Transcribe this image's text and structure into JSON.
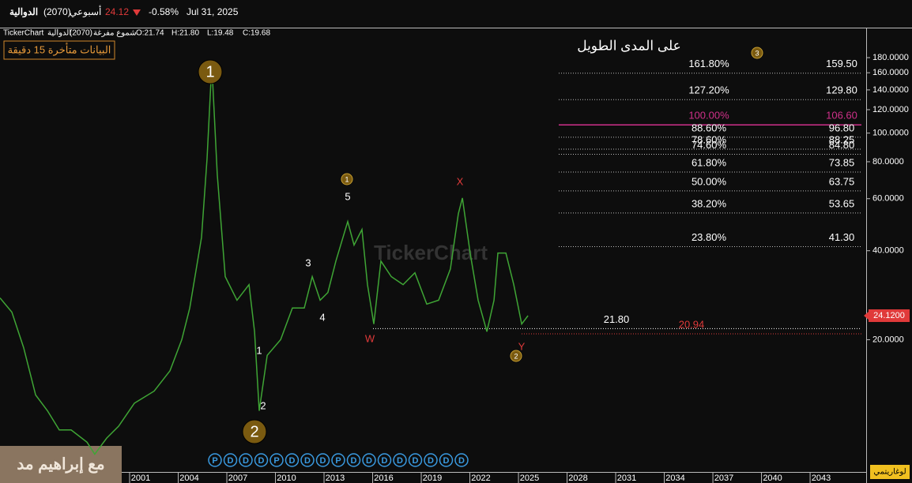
{
  "header": {
    "name": "الدوالية",
    "code": "(2070)",
    "period": "أسبوعي",
    "price": "24.12",
    "change": "-0.58%",
    "date": "Jul 31, 2025"
  },
  "info": {
    "source": "TickerChart",
    "name": "الدوالية",
    "code": "(2070)",
    "style": "شموع مفرغة",
    "ohlc": [
      "O:21.74",
      "H:21.80",
      "L:19.48",
      "C:19.68"
    ]
  },
  "notice": "البيانات متأخرة 15 دقيقة",
  "watermark": "TickerChart",
  "author": "مع إبراهيم مد",
  "scale_mode": "لوغاريتمي",
  "chart_data": {
    "type": "line",
    "title": "على المدى الطويل",
    "title_badge": "3",
    "color": "#3fa535",
    "log_scale": true,
    "x": [
      1993.0,
      1993.73,
      1994.46,
      1995.2,
      1995.93,
      1996.66,
      1997.39,
      1998.37,
      1998.85,
      1999.59,
      2000.32,
      2001.29,
      2002.51,
      2003.49,
      2004.22,
      2004.71,
      2005.44,
      2005.78,
      2006.07,
      2006.41,
      2006.9,
      2007.63,
      2008.37,
      2008.71,
      2009.0,
      2009.49,
      2010.32,
      2011.05,
      2011.78,
      2012.27,
      2012.76,
      2013.24,
      2013.73,
      2014.46,
      2014.85,
      2015.34,
      2015.68,
      2016.07,
      2016.51,
      2017.15,
      2017.88,
      2018.61,
      2019.34,
      2020.07,
      2020.8,
      2021.29,
      2021.54,
      2022.02,
      2022.51,
      2023.05,
      2023.49,
      2023.73,
      2024.22,
      2024.71,
      2025.2,
      2025.59
    ],
    "values": [
      27.7,
      24.8,
      18.8,
      13.0,
      11.5,
      9.9,
      9.9,
      9.0,
      8.2,
      9.3,
      10.2,
      12.2,
      13.4,
      15.7,
      20,
      25.6,
      44.4,
      82,
      171,
      72.5,
      32.7,
      27.2,
      30.7,
      21.3,
      11.5,
      17.7,
      20,
      25.6,
      25.6,
      32.7,
      27.2,
      28.9,
      36.9,
      50.2,
      41.8,
      47.2,
      30.7,
      22.6,
      36.9,
      32.7,
      30.7,
      33.7,
      26.4,
      27.2,
      34.7,
      53.4,
      60.3,
      39.3,
      27.2,
      21.3,
      27.2,
      39.3,
      39.3,
      30.7,
      22.6,
      24.12
    ],
    "xlim": [
      1993.0,
      2046.46
    ],
    "ylim": [
      7.14,
      226
    ],
    "xticks": [
      2001,
      2004,
      2007,
      2010,
      2013,
      2016,
      2019,
      2022,
      2025,
      2028,
      2031,
      2034,
      2037,
      2040,
      2043
    ],
    "yticks": [
      {
        "value": 20,
        "label": "20.0000"
      },
      {
        "value": 40,
        "label": "40.0000"
      },
      {
        "value": 60,
        "label": "60.0000"
      },
      {
        "value": 80,
        "label": "80.0000"
      },
      {
        "value": 100,
        "label": "100.0000"
      },
      {
        "value": 120,
        "label": "120.0000"
      },
      {
        "value": 140,
        "label": "140.0000"
      },
      {
        "value": 160,
        "label": "160.0000"
      },
      {
        "value": 180,
        "label": "180.0000"
      }
    ],
    "fib_levels": [
      {
        "ratio": "161.80%",
        "value": 159.5,
        "value_label": "159.50"
      },
      {
        "ratio": "127.20%",
        "value": 129.8,
        "value_label": "129.80"
      },
      {
        "ratio": "100.00%",
        "value": 106.6,
        "value_label": "106.60"
      },
      {
        "ratio": "88.60%",
        "value": 96.8,
        "value_label": "96.80"
      },
      {
        "ratio": "78.60%",
        "value": 88.25
      },
      {
        "ratio": "74.60%",
        "value": 84.8,
        "value_label": "84.80"
      },
      {
        "ratio": "61.80%",
        "value": 73.85
      },
      {
        "ratio": "50.00%",
        "value": 63.75
      },
      {
        "ratio": "38.20%",
        "value": 53.65
      },
      {
        "ratio": "23.80%",
        "value": 41.3,
        "value_label": "41.30"
      }
    ],
    "levels": [
      {
        "value": 21.8,
        "value_label": "21.80",
        "color": "#ffffff"
      },
      {
        "value": 20.94,
        "color": "#e03a3a"
      }
    ],
    "last_price": {
      "value": 24.12,
      "label": "24.1200"
    },
    "wave_labels": [
      "1",
      "2",
      "1",
      "2",
      "3",
      "4",
      "5",
      "1",
      "W",
      "X",
      "Y",
      "2"
    ],
    "dividends": [
      "P",
      "D",
      "D",
      "D",
      "P",
      "D",
      "D",
      "D",
      "P",
      "D",
      "D",
      "D",
      "D",
      "D",
      "D",
      "D",
      "D"
    ]
  }
}
